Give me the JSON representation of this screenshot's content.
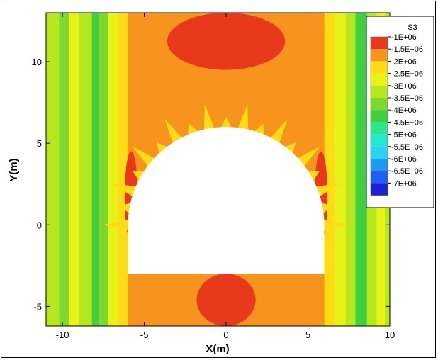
{
  "chart_data": {
    "type": "heatmap",
    "title": "",
    "xlabel": "X(m)",
    "ylabel": "Y(m)",
    "xlim": [
      -11,
      10
    ],
    "ylim": [
      -6.2,
      13
    ],
    "x_ticks": [
      -10,
      -5,
      0,
      5,
      10
    ],
    "y_ticks": [
      -5,
      0,
      5,
      10
    ],
    "x_tick_labels": [
      "-10",
      "-5",
      "0",
      "5",
      "10"
    ],
    "y_tick_labels": [
      "-5",
      "0",
      "5",
      "10"
    ],
    "field": "S3",
    "legend": {
      "title": "S3",
      "placement": "top-right",
      "levels": [
        {
          "label": "-1E+06",
          "value": -1000000,
          "color": "#e8391c"
        },
        {
          "label": "-1.5E+06",
          "value": -1500000,
          "color": "#f7941d"
        },
        {
          "label": "-2E+06",
          "value": -2000000,
          "color": "#fddb15"
        },
        {
          "label": "-2.5E+06",
          "value": -2500000,
          "color": "#e9f216"
        },
        {
          "label": "-3E+06",
          "value": -3000000,
          "color": "#b6e81d"
        },
        {
          "label": "-3.5E+06",
          "value": -3500000,
          "color": "#7dd932"
        },
        {
          "label": "-4E+06",
          "value": -4000000,
          "color": "#3fcf3f"
        },
        {
          "label": "-4.5E+06",
          "value": -4500000,
          "color": "#2ee58c"
        },
        {
          "label": "-5E+06",
          "value": -5000000,
          "color": "#22ead0"
        },
        {
          "label": "-5.5E+06",
          "value": -5500000,
          "color": "#2ad4f0"
        },
        {
          "label": "-6E+06",
          "value": -6000000,
          "color": "#1b9af2"
        },
        {
          "label": "-6.5E+06",
          "value": -6500000,
          "color": "#2060f0"
        },
        {
          "label": "-7E+06",
          "value": -7000000,
          "color": "#1a22d8"
        }
      ]
    },
    "opening": {
      "shape": "horseshoe",
      "x_range": [
        -6,
        6
      ],
      "floor_y": -3,
      "crown_y": 6,
      "springline_y": 0
    },
    "bands": [
      {
        "x0": -11,
        "x1": -10.2,
        "level": "-3E+06"
      },
      {
        "x0": -10.2,
        "x1": -9.6,
        "level": "-3.5E+06"
      },
      {
        "x0": -9.6,
        "x1": -9.0,
        "level": "-2.5E+06"
      },
      {
        "x0": -9.0,
        "x1": -8.2,
        "level": "-3E+06"
      },
      {
        "x0": -8.2,
        "x1": -7.8,
        "level": "-4E+06"
      },
      {
        "x0": -7.8,
        "x1": -7.2,
        "level": "-3.5E+06"
      },
      {
        "x0": -7.2,
        "x1": -6.6,
        "level": "-2.5E+06"
      },
      {
        "x0": -6.6,
        "x1": -6.0,
        "level": "-2E+06"
      },
      {
        "x0": -6.0,
        "x1": 6.0,
        "level": "-1.5E+06"
      },
      {
        "x0": 6.0,
        "x1": 6.6,
        "level": "-2E+06"
      },
      {
        "x0": 6.6,
        "x1": 7.3,
        "level": "-2.5E+06"
      },
      {
        "x0": 7.3,
        "x1": 7.9,
        "level": "-3E+06"
      },
      {
        "x0": 7.9,
        "x1": 8.6,
        "level": "-4E+06"
      },
      {
        "x0": 8.6,
        "x1": 9.2,
        "level": "-3E+06"
      },
      {
        "x0": 9.2,
        "x1": 9.7,
        "level": "-2.5E+06"
      },
      {
        "x0": 9.7,
        "x1": 10,
        "level": "-3E+06"
      }
    ],
    "hot_zones": [
      {
        "x0": -3.6,
        "x1": 3.6,
        "y0": 9.5,
        "y1": 13,
        "level": "-1E+06"
      },
      {
        "x0": -1.8,
        "x1": 1.8,
        "y0": -6.2,
        "y1": -3,
        "level": "-1E+06"
      },
      {
        "x0": -6.2,
        "x1": -5.4,
        "y0": -1,
        "y1": 4.5,
        "level": "-1E+06"
      },
      {
        "x0": 5.4,
        "x1": 6.2,
        "y0": -1,
        "y1": 4.5,
        "level": "-1E+06"
      }
    ]
  }
}
